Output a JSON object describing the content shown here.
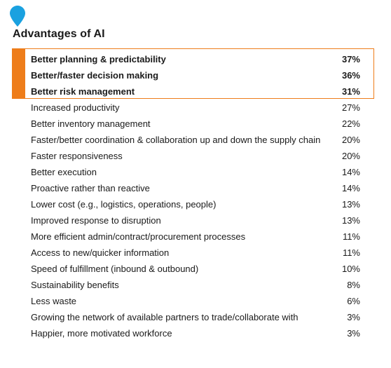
{
  "chart_data": {
    "type": "table",
    "title": "Advantages of AI",
    "highlight_color": "#ee7d1a",
    "accent_color": "#1aa1e0",
    "highlighted_count": 3,
    "categories": [
      "Better planning & predictability",
      "Better/faster decision making",
      "Better risk management",
      "Increased productivity",
      "Better inventory management",
      "Faster/better coordination & collaboration up and down the supply chain",
      "Faster responsiveness",
      "Better execution",
      "Proactive rather than reactive",
      "Lower cost (e.g., logistics, operations, people)",
      "Improved response to disruption",
      "More efficient admin/contract/procurement processes",
      "Access to new/quicker information",
      "Speed of fulfillment (inbound & outbound)",
      "Sustainability benefits",
      "Less waste",
      "Growing the network of available partners to trade/collaborate with",
      "Happier, more motivated workforce"
    ],
    "values": [
      37,
      36,
      31,
      27,
      22,
      20,
      20,
      14,
      14,
      13,
      13,
      11,
      11,
      10,
      8,
      6,
      3,
      3
    ],
    "value_labels": [
      "37%",
      "36%",
      "31%",
      "27%",
      "22%",
      "20%",
      "20%",
      "14%",
      "14%",
      "13%",
      "13%",
      "11%",
      "11%",
      "10%",
      "8%",
      "6%",
      "3%",
      "3%"
    ]
  },
  "icon": "location-pin-icon"
}
